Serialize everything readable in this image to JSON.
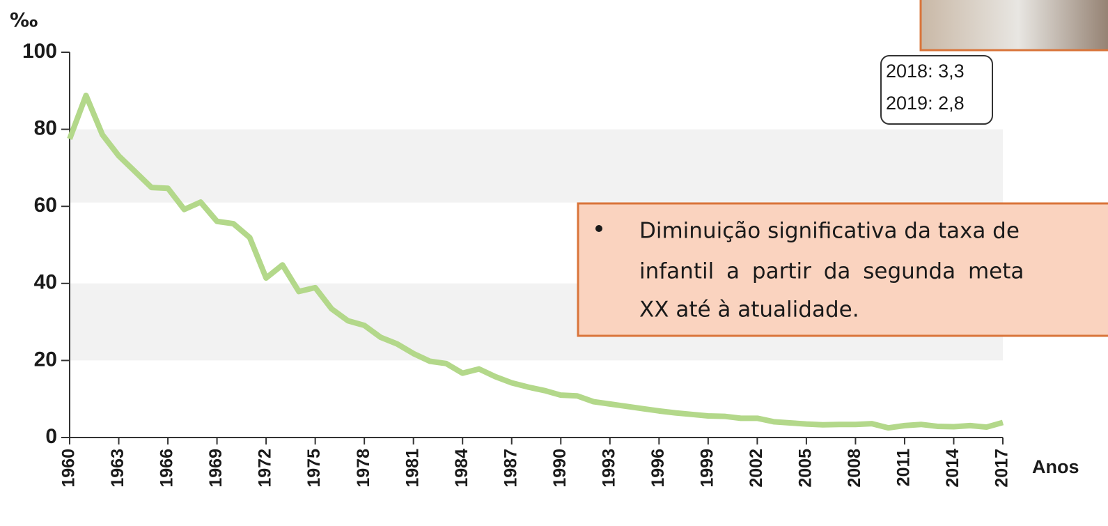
{
  "chart_data": {
    "type": "line",
    "y_label": "‰",
    "x_label": "Anos",
    "x": [
      1960,
      1961,
      1962,
      1963,
      1964,
      1965,
      1966,
      1967,
      1968,
      1969,
      1970,
      1971,
      1972,
      1973,
      1974,
      1975,
      1976,
      1977,
      1978,
      1979,
      1980,
      1981,
      1982,
      1983,
      1984,
      1985,
      1986,
      1987,
      1988,
      1989,
      1990,
      1991,
      1992,
      1993,
      1994,
      1995,
      1996,
      1997,
      1998,
      1999,
      2000,
      2001,
      2002,
      2003,
      2004,
      2005,
      2006,
      2007,
      2008,
      2009,
      2010,
      2011,
      2012,
      2013,
      2014,
      2015,
      2016,
      2017
    ],
    "series": [
      {
        "color": "#b3d88a",
        "values": [
          77.5,
          88.8,
          78.6,
          73.1,
          69.0,
          64.9,
          64.7,
          59.2,
          61.1,
          56.1,
          55.5,
          51.9,
          41.4,
          44.8,
          37.9,
          38.9,
          33.4,
          30.3,
          29.1,
          26.0,
          24.3,
          21.8,
          19.8,
          19.2,
          16.7,
          17.8,
          15.8,
          14.2,
          13.1,
          12.2,
          11.0,
          10.8,
          9.3,
          8.7,
          8.1,
          7.5,
          6.9,
          6.4,
          6.0,
          5.6,
          5.5,
          5.0,
          5.0,
          4.1,
          3.8,
          3.5,
          3.3,
          3.4,
          3.4,
          3.6,
          2.5,
          3.1,
          3.4,
          2.9,
          2.8,
          3.1,
          2.7,
          3.9
        ]
      }
    ],
    "xlim": [
      1960,
      2017
    ],
    "xticks": [
      1960,
      1963,
      1966,
      1969,
      1972,
      1975,
      1978,
      1981,
      1984,
      1987,
      1990,
      1993,
      1996,
      1999,
      2002,
      2005,
      2008,
      2011,
      2014,
      2017
    ],
    "ylim": [
      0,
      100
    ],
    "yticks": [
      0,
      20,
      40,
      60,
      80,
      100
    ],
    "shaded_bands": [
      [
        20,
        40
      ],
      [
        61,
        80
      ]
    ],
    "annotations": [
      "2018: 3,3",
      "2019: 2,8"
    ]
  },
  "callout": {
    "lines": [
      "Diminuição significativa da taxa de",
      "infantil a partir da segunda meta",
      "XX até à atualidade."
    ]
  }
}
